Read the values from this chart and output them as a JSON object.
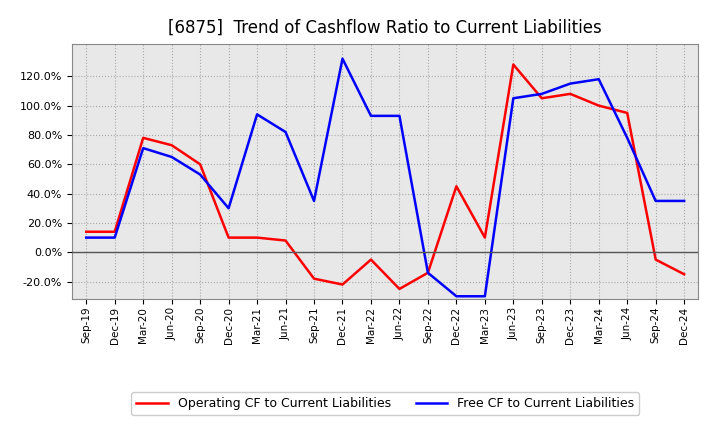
{
  "title": "[6875]  Trend of Cashflow Ratio to Current Liabilities",
  "x_labels": [
    "Sep-19",
    "Dec-19",
    "Mar-20",
    "Jun-20",
    "Sep-20",
    "Dec-20",
    "Mar-21",
    "Jun-21",
    "Sep-21",
    "Dec-21",
    "Mar-22",
    "Jun-22",
    "Sep-22",
    "Dec-22",
    "Mar-23",
    "Jun-23",
    "Sep-23",
    "Dec-23",
    "Mar-24",
    "Jun-24",
    "Sep-24",
    "Dec-24"
  ],
  "operating_cf": [
    0.14,
    0.14,
    0.78,
    0.73,
    0.6,
    0.1,
    0.1,
    0.08,
    -0.18,
    -0.22,
    -0.05,
    -0.25,
    -0.14,
    0.45,
    0.1,
    1.28,
    1.05,
    1.08,
    1.0,
    0.95,
    -0.05,
    -0.15
  ],
  "free_cf": [
    0.1,
    0.1,
    0.71,
    0.65,
    0.53,
    0.3,
    0.94,
    0.82,
    0.35,
    1.32,
    0.93,
    0.93,
    -0.14,
    -0.3,
    -0.3,
    1.05,
    1.08,
    1.15,
    1.18,
    0.78,
    0.35,
    0.35
  ],
  "operating_color": "#ff0000",
  "free_color": "#0000ff",
  "ylim": [
    -0.32,
    1.42
  ],
  "yticks": [
    -0.2,
    0.0,
    0.2,
    0.4,
    0.6,
    0.8,
    1.0,
    1.2
  ],
  "plot_bg_color": "#e8e8e8",
  "background_color": "#ffffff",
  "grid_color": "#aaaaaa",
  "title_fontsize": 12
}
